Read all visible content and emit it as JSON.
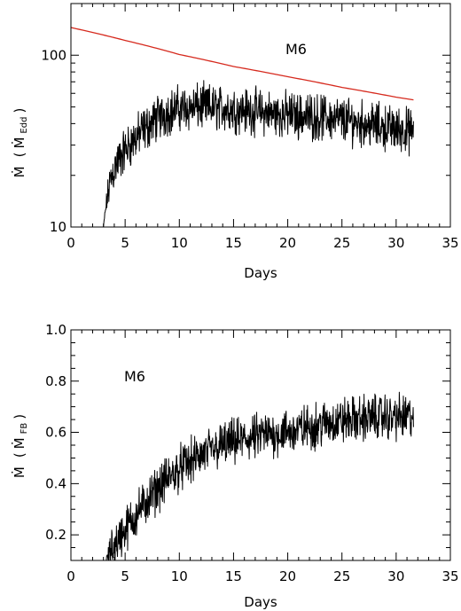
{
  "chart_data": [
    {
      "type": "line",
      "annotation": "M6",
      "xlabel": "Days",
      "ylabel": {
        "main": "Ṁ",
        "paren_open": "(",
        "inner": "Ṁ",
        "sub": "Edd",
        "paren_close": ")"
      },
      "xlim": [
        0,
        35
      ],
      "ylim": [
        10,
        200
      ],
      "yscale": "log",
      "xticks": [
        0,
        5,
        10,
        15,
        20,
        25,
        30,
        35
      ],
      "yticks": [
        10,
        100
      ],
      "yticklabels": [
        "10",
        "100"
      ],
      "grid": false,
      "series": [
        {
          "color": "#d62a1e",
          "style": "smooth",
          "x": [
            0,
            5,
            10,
            15,
            20,
            25,
            30,
            31.6
          ],
          "y": [
            145,
            122,
            101,
            86,
            75,
            65,
            57,
            55
          ]
        },
        {
          "color": "#000000",
          "style": "noisy",
          "x": [
            3.0,
            3.3,
            3.6,
            4.0,
            4.5,
            5.0,
            6.0,
            7.0,
            8.0,
            9.0,
            10.0,
            12.0,
            14.0,
            16.0,
            18.0,
            20.0,
            22.0,
            24.0,
            26.0,
            28.0,
            30.0,
            31.6
          ],
          "y": [
            10,
            14,
            18,
            22,
            25,
            28,
            33,
            38,
            43,
            47,
            49,
            50,
            49,
            48,
            46,
            45,
            44,
            43,
            41,
            39,
            37,
            36
          ],
          "noise_amplitude": 0.09
        }
      ]
    },
    {
      "type": "line",
      "annotation": "M6",
      "xlabel": "Days",
      "ylabel": {
        "main": "Ṁ",
        "paren_open": "(",
        "inner": "Ṁ",
        "sub": "FB",
        "paren_close": ")"
      },
      "xlim": [
        0,
        35
      ],
      "ylim": [
        0.1,
        1.0
      ],
      "yscale": "linear",
      "xticks": [
        0,
        5,
        10,
        15,
        20,
        25,
        30,
        35
      ],
      "yticks": [
        0.2,
        0.4,
        0.6,
        0.8,
        1.0
      ],
      "yticklabels": [
        "0.2",
        "0.4",
        "0.6",
        "0.8",
        "1.0"
      ],
      "grid": false,
      "series": [
        {
          "color": "#000000",
          "style": "noisy",
          "x": [
            3.2,
            4.0,
            5.0,
            6.0,
            7.0,
            8.0,
            9.0,
            10.0,
            12.0,
            14.0,
            16.0,
            18.0,
            20.0,
            22.0,
            24.0,
            26.0,
            28.0,
            30.0,
            31.6
          ],
          "y": [
            0.1,
            0.16,
            0.22,
            0.28,
            0.33,
            0.38,
            0.42,
            0.46,
            0.51,
            0.55,
            0.57,
            0.59,
            0.6,
            0.62,
            0.64,
            0.65,
            0.66,
            0.66,
            0.66
          ],
          "noise_amplitude": 0.06
        }
      ]
    }
  ]
}
